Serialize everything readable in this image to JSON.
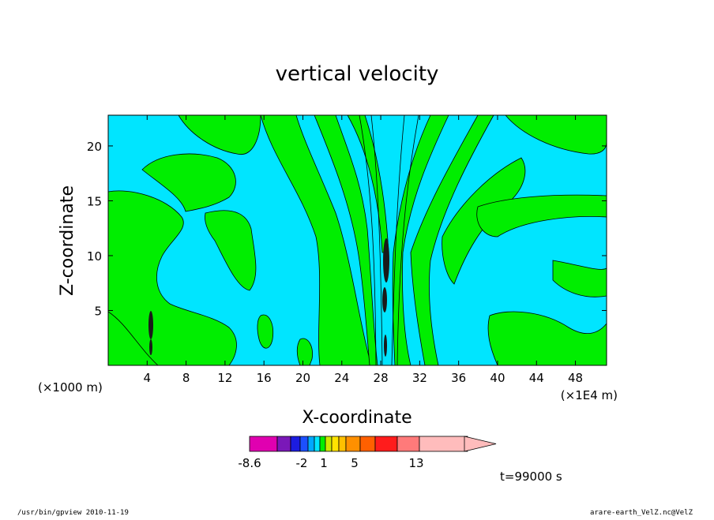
{
  "chart_data": {
    "type": "heatmap",
    "title": "vertical velocity",
    "xlabel": "X-coordinate",
    "ylabel": "Z-coordinate",
    "x_unit_left": "(×1000 m)",
    "x_unit_right": "(×1E4 m)",
    "x_ticks": [
      "4",
      "8",
      "12",
      "16",
      "20",
      "24",
      "28",
      "32",
      "36",
      "40",
      "44",
      "48"
    ],
    "y_ticks": [
      "5",
      "10",
      "15",
      "20"
    ],
    "xlim": [
      0,
      51.2
    ],
    "ylim": [
      0,
      22.8
    ],
    "colors": {
      "background_field": "#00e5ff",
      "positive_field": "#00ee00",
      "contour": "#000000"
    },
    "colorbar": {
      "labels": [
        "-8.6",
        "-2",
        "1",
        "5",
        "13"
      ],
      "colors": [
        "#e000b0",
        "#7a18b8",
        "#1c1ce0",
        "#1c50ff",
        "#00a8ff",
        "#00e5ff",
        "#00ee00",
        "#cfe800",
        "#ffe400",
        "#ffc000",
        "#ff9000",
        "#ff6000",
        "#ff1c1c",
        "#ff7a7a",
        "#ffbcbc"
      ]
    },
    "time_label": "t=99000 s"
  },
  "footer": {
    "left": "/usr/bin/gpview   2010-11-19",
    "right": "arare-earth_VelZ.nc@VelZ"
  }
}
